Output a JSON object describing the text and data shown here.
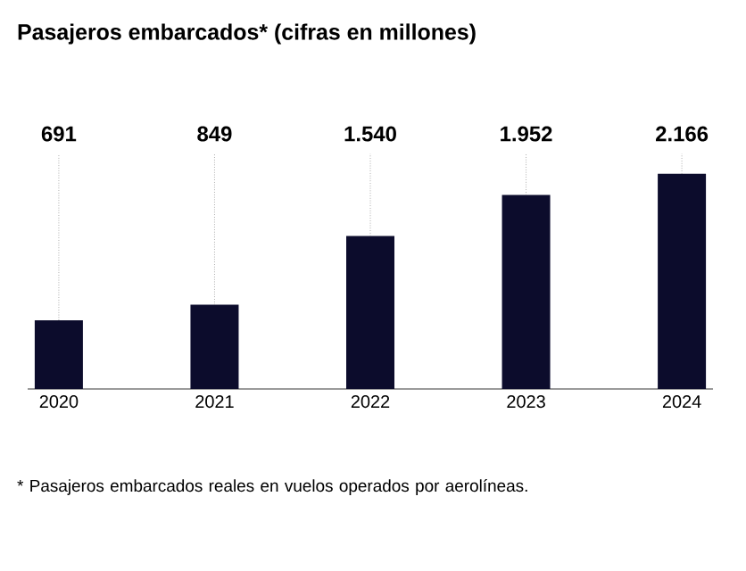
{
  "chart_data": {
    "type": "bar",
    "title": "Pasajeros embarcados* (cifras en millones)",
    "categories": [
      "2020",
      "2021",
      "2022",
      "2023",
      "2024"
    ],
    "values": [
      691,
      849,
      1540,
      1952,
      2166
    ],
    "value_labels": [
      "691",
      "849",
      "1.540",
      "1.952",
      "2.166"
    ],
    "color": "#0c0c2c",
    "annotations": [
      "* Pasajeros embarcados reales en vuelos operados por aerolíneas."
    ]
  }
}
